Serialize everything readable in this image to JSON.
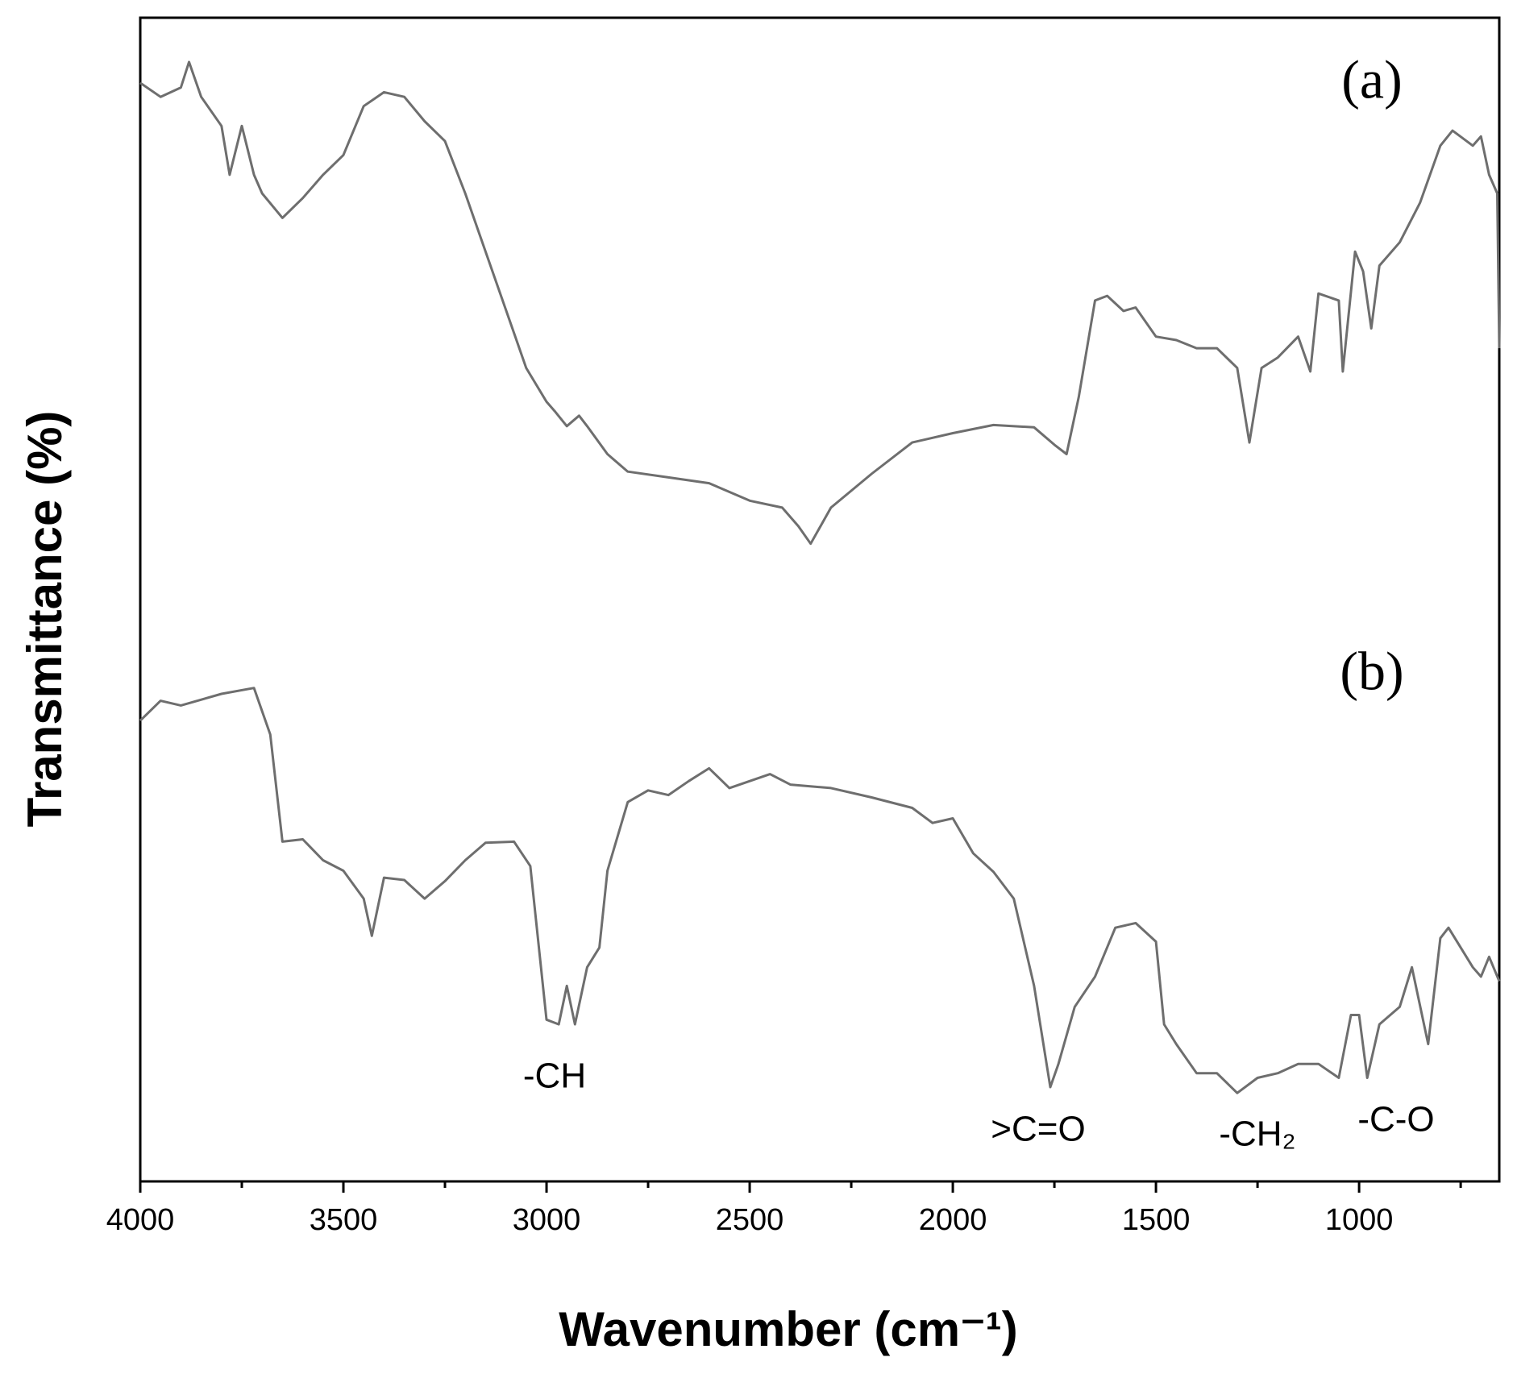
{
  "chart_data": {
    "type": "line",
    "xlabel": "Wavenumber (cm⁻¹)",
    "ylabel": "Transmittance (%)",
    "xlim": [
      4000,
      655
    ],
    "ylim": [
      0,
      100
    ],
    "xticks": [
      4000,
      3500,
      3000,
      2500,
      2000,
      1500,
      1000
    ],
    "xminor_ticks": [
      3750,
      3250,
      2750,
      2250,
      1750,
      1250,
      750
    ],
    "annotations": [
      "(a)",
      "(b)",
      "-CH",
      ">C=O",
      "-CH₂",
      "-C-O"
    ],
    "series": [
      {
        "name": "(a)",
        "color": "#6e6e6e",
        "x": [
          4000,
          3950,
          3900,
          3880,
          3850,
          3800,
          3780,
          3750,
          3720,
          3700,
          3650,
          3600,
          3550,
          3500,
          3450,
          3400,
          3350,
          3300,
          3250,
          3200,
          3150,
          3100,
          3050,
          3000,
          2980,
          2950,
          2920,
          2900,
          2850,
          2800,
          2700,
          2600,
          2500,
          2420,
          2380,
          2350,
          2300,
          2200,
          2100,
          2000,
          1900,
          1800,
          1750,
          1720,
          1690,
          1650,
          1620,
          1580,
          1550,
          1500,
          1450,
          1400,
          1350,
          1300,
          1270,
          1240,
          1200,
          1150,
          1120,
          1100,
          1050,
          1040,
          1010,
          990,
          970,
          950,
          900,
          850,
          800,
          770,
          720,
          700,
          680,
          660,
          655
        ],
        "values": [
          94.4,
          93.2,
          94.0,
          96.2,
          93.2,
          90.7,
          86.5,
          90.7,
          86.5,
          84.9,
          82.8,
          84.5,
          86.5,
          88.2,
          92.4,
          93.6,
          93.2,
          91.1,
          89.4,
          84.9,
          79.9,
          74.9,
          69.9,
          67.0,
          66.2,
          64.9,
          65.8,
          64.9,
          62.5,
          61.0,
          60.5,
          60.0,
          58.5,
          57.9,
          56.3,
          54.8,
          57.9,
          60.8,
          63.5,
          64.3,
          65.0,
          64.8,
          63.3,
          62.5,
          67.4,
          75.7,
          76.1,
          74.8,
          75.1,
          72.6,
          72.3,
          71.6,
          71.6,
          69.9,
          63.5,
          69.9,
          70.8,
          72.6,
          69.6,
          76.3,
          75.7,
          69.6,
          79.9,
          78.2,
          73.3,
          78.7,
          80.7,
          84.1,
          89.0,
          90.3,
          89.0,
          89.8,
          86.5,
          84.9,
          71.6
        ]
      },
      {
        "name": "(b)",
        "color": "#6e6e6e",
        "x": [
          4000,
          3950,
          3900,
          3800,
          3720,
          3680,
          3650,
          3600,
          3550,
          3500,
          3450,
          3430,
          3400,
          3350,
          3300,
          3250,
          3200,
          3150,
          3080,
          3040,
          3000,
          2970,
          2950,
          2930,
          2900,
          2870,
          2850,
          2800,
          2750,
          2700,
          2650,
          2600,
          2550,
          2450,
          2400,
          2300,
          2200,
          2100,
          2050,
          2000,
          1950,
          1900,
          1850,
          1800,
          1760,
          1740,
          1700,
          1650,
          1600,
          1550,
          1500,
          1480,
          1450,
          1400,
          1350,
          1300,
          1250,
          1200,
          1150,
          1100,
          1050,
          1020,
          1000,
          980,
          950,
          900,
          870,
          830,
          800,
          780,
          720,
          700,
          680,
          655
        ],
        "values": [
          39.6,
          41.3,
          40.9,
          41.9,
          42.4,
          38.4,
          29.2,
          29.4,
          27.6,
          26.7,
          24.3,
          21.1,
          26.1,
          25.9,
          24.3,
          25.8,
          27.6,
          29.1,
          29.2,
          27.1,
          13.9,
          13.5,
          16.8,
          13.5,
          18.4,
          20.1,
          26.7,
          32.6,
          33.6,
          33.2,
          34.4,
          35.5,
          33.8,
          35.0,
          34.1,
          33.8,
          33.0,
          32.1,
          30.8,
          31.2,
          28.2,
          26.6,
          24.3,
          16.8,
          8.1,
          10.1,
          15.0,
          17.6,
          21.8,
          22.2,
          20.6,
          13.5,
          11.8,
          9.3,
          9.3,
          7.6,
          8.9,
          9.3,
          10.1,
          10.1,
          8.9,
          14.3,
          14.3,
          8.9,
          13.5,
          15.0,
          18.4,
          11.8,
          20.9,
          21.8,
          18.4,
          17.6,
          19.3,
          17.2
        ]
      }
    ]
  }
}
